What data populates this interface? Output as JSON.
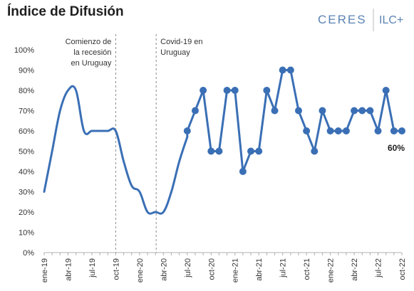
{
  "logos": {
    "ceres": "CERES",
    "ilc": "ILC+",
    "ceres_color": "#5b83b4"
  },
  "chart_data": {
    "type": "line",
    "title": "Índice de Difusión",
    "xlabel": "",
    "ylabel": "",
    "ylim": [
      0,
      100
    ],
    "y_unit": "%",
    "grid": false,
    "legend": "none",
    "line_color": "#3a6fb5",
    "yticks": [
      "0%",
      "10%",
      "20%",
      "30%",
      "40%",
      "50%",
      "60%",
      "70%",
      "80%",
      "90%",
      "100%"
    ],
    "xticks": [
      "ene-19",
      "abr-19",
      "jul-19",
      "oct-19",
      "ene-20",
      "abr-20",
      "jul-20",
      "oct-20",
      "ene-21",
      "abr-21",
      "jul-21",
      "oct-21",
      "ene-22",
      "abr-22",
      "jul-22",
      "oct-22"
    ],
    "annotations": [
      {
        "text": [
          "Comienzo de",
          "la recesión",
          "en Uruguay"
        ],
        "at": "oct-19"
      },
      {
        "text": [
          "Covid-19 en",
          "Uruguay"
        ],
        "at": "mar-20"
      }
    ],
    "end_label": "60%",
    "series": [
      {
        "smooth_segment": [
          [
            "ene-19",
            30
          ],
          [
            "feb-19",
            50
          ],
          [
            "mar-19",
            70
          ],
          [
            "abr-19",
            80
          ],
          [
            "may-19",
            80
          ],
          [
            "jun-19",
            60
          ],
          [
            "jul-19",
            60
          ],
          [
            "ago-19",
            60
          ],
          [
            "sep-19",
            60
          ],
          [
            "oct-19",
            60
          ],
          [
            "nov-19",
            45
          ],
          [
            "dic-19",
            33
          ],
          [
            "ene-20",
            30
          ],
          [
            "feb-20",
            20
          ],
          [
            "mar-20",
            20
          ],
          [
            "abr-20",
            20
          ],
          [
            "may-20",
            30
          ],
          [
            "jun-20",
            45
          ],
          [
            "jul-20",
            57
          ]
        ],
        "markers": [
          [
            "jul-20",
            60
          ],
          [
            "ago-20",
            70
          ],
          [
            "sep-20",
            80
          ],
          [
            "oct-20",
            50
          ],
          [
            "nov-20",
            50
          ],
          [
            "dic-20",
            80
          ],
          [
            "ene-21",
            80
          ],
          [
            "feb-21",
            40
          ],
          [
            "mar-21",
            50
          ],
          [
            "abr-21",
            50
          ],
          [
            "may-21",
            80
          ],
          [
            "jun-21",
            70
          ],
          [
            "jul-21",
            90
          ],
          [
            "ago-21",
            90
          ],
          [
            "sep-21",
            70
          ],
          [
            "oct-21",
            60
          ],
          [
            "nov-21",
            50
          ],
          [
            "dic-21",
            70
          ],
          [
            "ene-22",
            60
          ],
          [
            "feb-22",
            60
          ],
          [
            "mar-22",
            60
          ],
          [
            "abr-22",
            70
          ],
          [
            "may-22",
            70
          ],
          [
            "jun-22",
            70
          ],
          [
            "jul-22",
            60
          ],
          [
            "ago-22",
            80
          ],
          [
            "sep-22",
            60
          ],
          [
            "oct-22",
            60
          ]
        ]
      }
    ]
  }
}
